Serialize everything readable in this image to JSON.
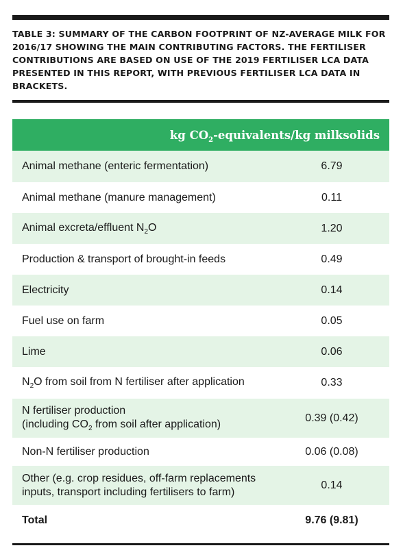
{
  "caption": "TABLE 3: SUMMARY OF THE CARBON FOOTPRINT OF NZ-AVERAGE MILK FOR 2016/17 SHOWING THE MAIN CONTRIBUTING FACTORS. THE FERTILISER CONTRIBUTIONS ARE BASED ON USE OF THE 2019 FERTILISER LCA DATA PRESENTED IN THIS REPORT, WITH PREVIOUS FERTILISER LCA DATA IN BRACKETS.",
  "header": {
    "unit_prefix": "kg CO",
    "unit_sub": "2",
    "unit_suffix": "-equivalents/kg milksolids"
  },
  "rows": [
    {
      "label": "Animal methane (enteric fermentation)",
      "value": "6.79"
    },
    {
      "label": "Animal methane (manure management)",
      "value": "0.11"
    },
    {
      "label_prefix": "Animal excreta/effluent N",
      "label_sub": "2",
      "label_suffix": "O",
      "value": "1.20"
    },
    {
      "label": "Production & transport of brought-in feeds",
      "value": "0.49"
    },
    {
      "label": "Electricity",
      "value": "0.14"
    },
    {
      "label": "Fuel use on farm",
      "value": "0.05"
    },
    {
      "label": "Lime",
      "value": "0.06"
    },
    {
      "label_prefix": "N",
      "label_sub": "2",
      "label_suffix": "O from soil from N fertiliser after application",
      "value": "0.33"
    },
    {
      "label_line1": "N fertiliser production",
      "label_line2_prefix": "(including CO",
      "label_line2_sub": "2",
      "label_line2_suffix": " from soil after application)",
      "value": "0.39 (0.42)"
    },
    {
      "label": "Non-N fertiliser production",
      "value": "0.06 (0.08)"
    },
    {
      "label_line1": "Other (e.g. crop residues, off-farm replacements",
      "label_line2": "inputs, transport including fertilisers to farm)",
      "value": "0.14"
    },
    {
      "label": "Total",
      "value": "9.76 (9.81)"
    }
  ]
}
